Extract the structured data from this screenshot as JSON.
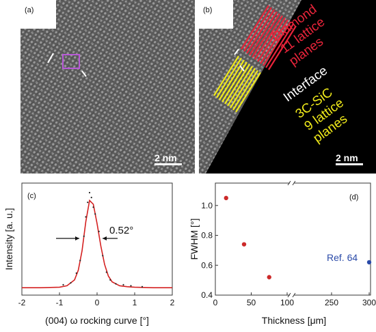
{
  "panel_a": {
    "label": "(a)",
    "scale_bar": "2 nm"
  },
  "panel_b": {
    "label": "(b)",
    "scale_bar": "2 nm",
    "annotations": {
      "diamond_line1": "Diamond",
      "diamond_line2": "11 lattice",
      "diamond_line3": "planes",
      "interface": "Interface",
      "sic_line1": "3C-SiC",
      "sic_line2": "9 lattice",
      "sic_line3": "planes"
    },
    "colors": {
      "diamond": "#e8243a",
      "interface": "#ffffff",
      "sic": "#f0ea1a"
    }
  },
  "chart_data": [
    {
      "type": "line",
      "panel_label": "(c)",
      "xlabel": "(004) ω rocking curve  [°]",
      "ylabel": "Intensity  [a. u.]",
      "xlim": [
        -2,
        2
      ],
      "xticks": [
        "-2",
        "-1",
        "0",
        "1",
        "2"
      ],
      "annotation": "0.52°",
      "series": [
        {
          "style": "red fit line",
          "color": "#d42020",
          "x": [
            -2.0,
            -1.5,
            -1.0,
            -0.8,
            -0.6,
            -0.5,
            -0.4,
            -0.3,
            -0.2,
            -0.1,
            0.0,
            0.1,
            0.2,
            0.3,
            0.4,
            0.6,
            0.8,
            1.0,
            1.5,
            2.0
          ],
          "y": [
            0.02,
            0.02,
            0.025,
            0.04,
            0.1,
            0.2,
            0.4,
            0.7,
            0.92,
            0.88,
            0.68,
            0.45,
            0.26,
            0.14,
            0.08,
            0.04,
            0.03,
            0.025,
            0.02,
            0.02
          ]
        },
        {
          "style": "black scatter points",
          "color": "#222222",
          "x": [
            -0.9,
            -0.7,
            -0.55,
            -0.45,
            -0.35,
            -0.3,
            -0.25,
            -0.2,
            -0.15,
            -0.1,
            -0.05,
            0.05,
            0.15,
            0.25,
            0.35,
            0.5,
            0.7,
            0.9,
            1.2
          ],
          "y": [
            0.05,
            0.07,
            0.17,
            0.3,
            0.55,
            0.75,
            0.9,
            1.0,
            0.95,
            0.85,
            0.78,
            0.6,
            0.35,
            0.18,
            0.1,
            0.06,
            0.05,
            0.04,
            0.03
          ]
        }
      ]
    },
    {
      "type": "scatter",
      "panel_label": "(d)",
      "xlabel": "Thickness  [μm]",
      "ylabel": "FWHM  [°]",
      "ylim": [
        0.4,
        1.15
      ],
      "yticks": [
        "0.4",
        "0.6",
        "0.8",
        "1.0"
      ],
      "xticks": [
        "0",
        "50",
        "100",
        "250",
        "300"
      ],
      "x_axis_break": "between 100 and 250",
      "annotation": "Ref. 64",
      "points": [
        {
          "x": 15,
          "y": 1.05,
          "color": "#cc2a2a"
        },
        {
          "x": 40,
          "y": 0.74,
          "color": "#cc2a2a"
        },
        {
          "x": 75,
          "y": 0.52,
          "color": "#cc2a2a"
        },
        {
          "x": 300,
          "y": 0.62,
          "color": "#2a4aa8"
        }
      ]
    }
  ]
}
